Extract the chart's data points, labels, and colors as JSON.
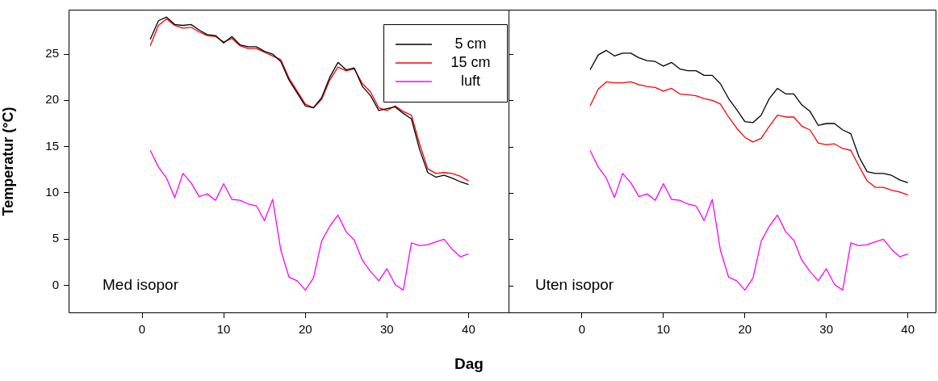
{
  "chart_data": [
    {
      "type": "line",
      "ylabel": "Temperatur (°C)",
      "xlabel": "Dag",
      "annotations": [
        "Med isopor"
      ],
      "legend": "top right",
      "grid": false,
      "marker": "none",
      "line_style": "solid",
      "x": [
        1,
        2,
        3,
        4,
        5,
        6,
        7,
        8,
        9,
        10,
        11,
        12,
        13,
        14,
        15,
        16,
        17,
        18,
        19,
        20,
        21,
        22,
        23,
        24,
        25,
        26,
        27,
        28,
        29,
        30,
        31,
        32,
        33,
        34,
        35,
        36,
        37,
        38,
        39,
        40
      ],
      "xlim": [
        -9,
        45
      ],
      "xticks": [
        0,
        10,
        20,
        30,
        40
      ],
      "ylim": [
        -3,
        29.8
      ],
      "yticks": [
        0,
        5,
        10,
        15,
        20,
        25
      ],
      "series": [
        {
          "name": "5 cm",
          "color": "#000000",
          "values": [
            26.6,
            28.6,
            29.0,
            28.2,
            28.1,
            28.2,
            27.6,
            27.1,
            27.0,
            26.2,
            26.9,
            26.0,
            25.8,
            25.8,
            25.3,
            25.0,
            24.2,
            22.2,
            20.8,
            19.4,
            19.2,
            20.3,
            22.5,
            24.1,
            23.3,
            23.5,
            21.5,
            20.5,
            18.9,
            19.1,
            19.3,
            18.6,
            18.0,
            14.7,
            12.2,
            11.7,
            11.9,
            11.6,
            11.2,
            10.9
          ]
        },
        {
          "name": "15 cm",
          "color": "#ff0000",
          "values": [
            25.9,
            28.1,
            28.8,
            28.1,
            27.8,
            27.9,
            27.4,
            27.0,
            26.9,
            26.3,
            26.7,
            25.9,
            25.6,
            25.6,
            25.2,
            24.8,
            24.4,
            22.4,
            21.0,
            19.6,
            19.2,
            20.1,
            22.2,
            23.6,
            23.2,
            23.4,
            21.8,
            20.9,
            19.2,
            18.9,
            19.4,
            18.8,
            18.4,
            15.3,
            12.6,
            12.1,
            12.2,
            12.1,
            11.8,
            11.3
          ]
        },
        {
          "name": "luft",
          "color": "#ff00ff",
          "values": [
            14.6,
            12.8,
            11.6,
            9.5,
            12.1,
            11.1,
            9.6,
            9.9,
            9.2,
            11.0,
            9.3,
            9.2,
            8.8,
            8.6,
            7.0,
            9.3,
            3.8,
            0.9,
            0.5,
            -0.5,
            0.8,
            4.8,
            6.4,
            7.6,
            5.8,
            4.9,
            2.7,
            1.5,
            0.5,
            1.8,
            0.1,
            -0.5,
            4.6,
            4.3,
            4.4,
            4.7,
            5.0,
            3.9,
            3.1,
            3.4
          ]
        }
      ]
    },
    {
      "type": "line",
      "annotations": [
        "Uten isopor"
      ],
      "grid": false,
      "marker": "none",
      "line_style": "solid",
      "tick_labels": "x",
      "x": [
        1,
        2,
        3,
        4,
        5,
        6,
        7,
        8,
        9,
        10,
        11,
        12,
        13,
        14,
        15,
        16,
        17,
        18,
        19,
        20,
        21,
        22,
        23,
        24,
        25,
        26,
        27,
        28,
        29,
        30,
        31,
        32,
        33,
        34,
        35,
        36,
        37,
        38,
        39,
        40
      ],
      "xlim": [
        -9,
        43.5
      ],
      "xticks": [
        0,
        10,
        20,
        30,
        40
      ],
      "ylim": [
        -3,
        29.8
      ],
      "yticks": [
        0,
        5,
        10,
        15,
        20,
        25
      ],
      "series": [
        {
          "color": "#000000",
          "values": [
            23.3,
            24.9,
            25.4,
            24.8,
            25.1,
            25.1,
            24.6,
            24.3,
            24.2,
            23.7,
            24.1,
            23.4,
            23.2,
            23.2,
            22.7,
            22.7,
            21.8,
            20.2,
            19.0,
            17.7,
            17.6,
            18.4,
            20.2,
            21.3,
            20.7,
            20.7,
            19.5,
            18.8,
            17.3,
            17.5,
            17.5,
            16.8,
            16.4,
            13.9,
            12.3,
            12.1,
            12.1,
            11.9,
            11.4,
            11.1
          ]
        },
        {
          "color": "#ff0000",
          "values": [
            19.4,
            21.2,
            22.0,
            21.9,
            21.9,
            22.0,
            21.7,
            21.5,
            21.4,
            21.0,
            21.3,
            20.7,
            20.6,
            20.5,
            20.2,
            20.0,
            19.6,
            18.2,
            17.0,
            16.0,
            15.5,
            15.9,
            17.2,
            18.4,
            18.2,
            18.2,
            17.2,
            16.8,
            15.4,
            15.2,
            15.3,
            14.8,
            14.6,
            12.9,
            11.3,
            10.6,
            10.6,
            10.3,
            10.1,
            9.8
          ]
        },
        {
          "color": "#ff00ff",
          "values": [
            14.6,
            12.8,
            11.6,
            9.5,
            12.1,
            11.1,
            9.6,
            9.9,
            9.2,
            11.0,
            9.3,
            9.2,
            8.8,
            8.6,
            7.0,
            9.3,
            3.8,
            0.9,
            0.5,
            -0.5,
            0.8,
            4.8,
            6.4,
            7.6,
            5.8,
            4.9,
            2.7,
            1.5,
            0.5,
            1.8,
            0.1,
            -0.5,
            4.6,
            4.3,
            4.4,
            4.7,
            5.0,
            3.9,
            3.1,
            3.4
          ]
        }
      ]
    }
  ]
}
